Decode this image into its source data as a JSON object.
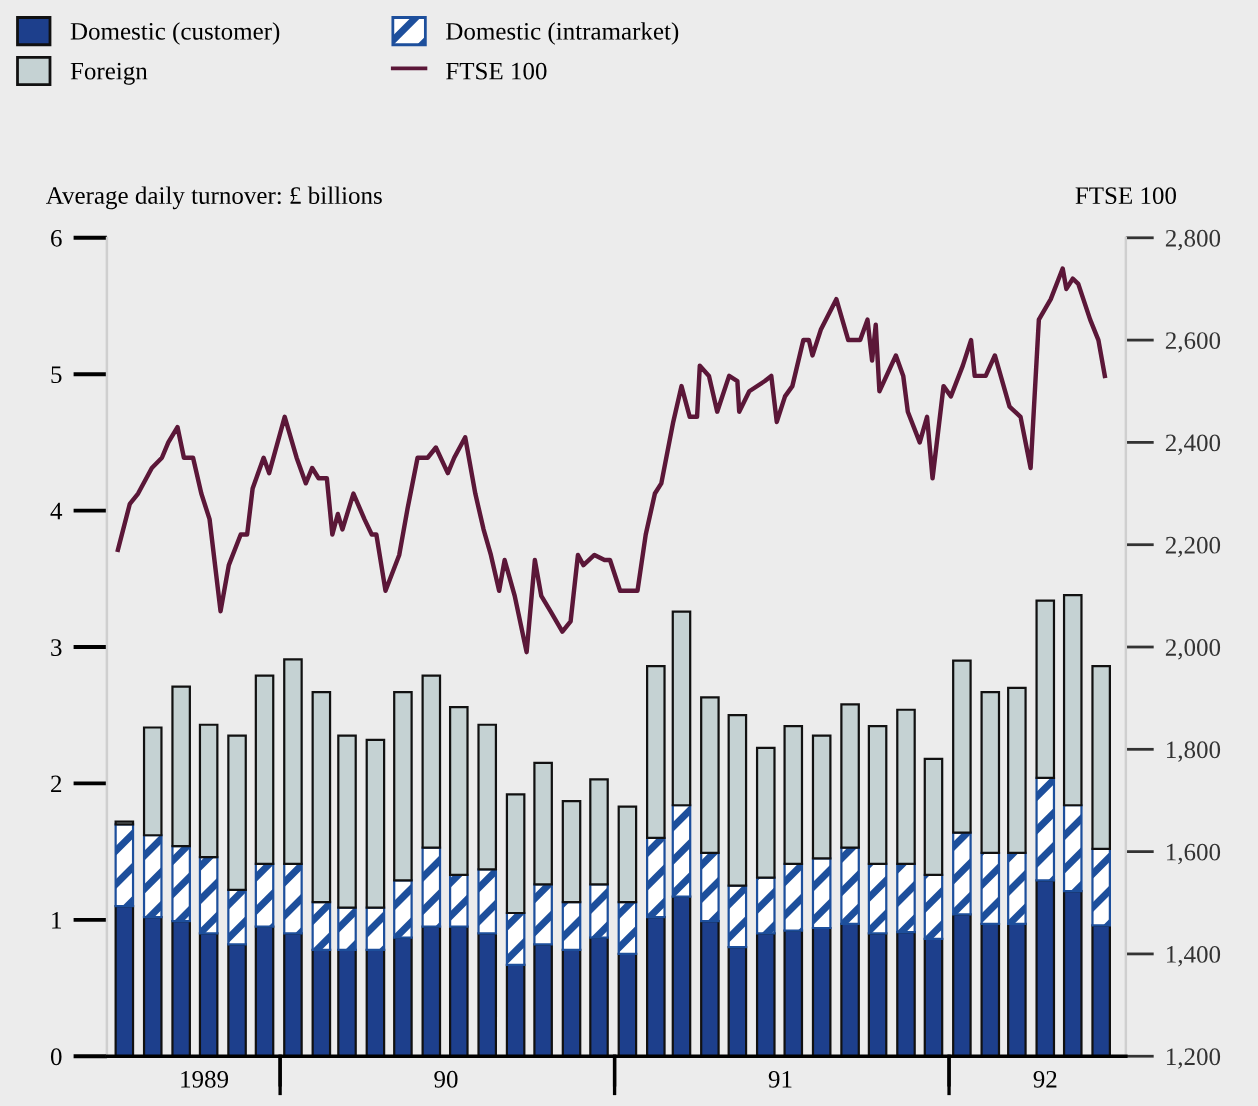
{
  "chart_data": {
    "type": "bar",
    "stacked": true,
    "ylabel": "Average daily turnover: £ billions",
    "y2label": "FTSE 100",
    "x": [
      "1989-07-15",
      "1989-08-15",
      "1989-09-15",
      "1989-10-15",
      "1989-11-15",
      "1989-12-15",
      "1990-01-15",
      "1990-02-15",
      "1990-03-15",
      "1990-04-15",
      "1990-05-15",
      "1990-06-15",
      "1990-07-15",
      "1990-08-15",
      "1990-09-15",
      "1990-10-15",
      "1990-11-15",
      "1990-12-15",
      "1991-01-15",
      "1991-02-15",
      "1991-03-15",
      "1991-04-15",
      "1991-05-15",
      "1991-06-15",
      "1991-07-15",
      "1991-08-15",
      "1991-09-15",
      "1991-10-15",
      "1991-11-15",
      "1991-12-15",
      "1992-01-15",
      "1992-02-15",
      "1992-03-15",
      "1992-04-15",
      "1992-05-15",
      "1992-06-15"
    ],
    "xlim": [
      "1989-06-26",
      "1992-07-12"
    ],
    "xticks": [
      {
        "value": "1989-10-10",
        "label": "1989"
      },
      {
        "value": "1990-01-01",
        "label": null
      },
      {
        "value": "1990-07-01",
        "label": "90"
      },
      {
        "value": "1991-01-01",
        "label": null
      },
      {
        "value": "1991-07-01",
        "label": "91"
      },
      {
        "value": "1992-01-01",
        "label": null
      },
      {
        "value": "1992-04-15",
        "label": "92"
      }
    ],
    "ylim": [
      0,
      6
    ],
    "yticks": [
      0,
      1,
      2,
      3,
      4,
      5,
      6
    ],
    "y2lim": [
      1200,
      2800
    ],
    "y2ticks": [
      {
        "value": 1200,
        "label": "1,200"
      },
      {
        "value": 1400,
        "label": "1,400"
      },
      {
        "value": 1600,
        "label": "1,600"
      },
      {
        "value": 1800,
        "label": "1,800"
      },
      {
        "value": 2000,
        "label": "2,000"
      },
      {
        "value": 2200,
        "label": "2,200"
      },
      {
        "value": 2400,
        "label": "2,400"
      },
      {
        "value": 2600,
        "label": "2,600"
      },
      {
        "value": 2800,
        "label": "2,800"
      }
    ],
    "legend": "top",
    "grid": false,
    "series": [
      {
        "name": "Domestic (customer)",
        "color": "#1d3f8c",
        "values": [
          1.1,
          1.02,
          0.99,
          0.9,
          0.82,
          0.95,
          0.9,
          0.78,
          0.78,
          0.78,
          0.87,
          0.95,
          0.95,
          0.9,
          0.67,
          0.82,
          0.78,
          0.87,
          0.75,
          1.02,
          1.17,
          0.99,
          0.8,
          0.9,
          0.92,
          0.94,
          0.97,
          0.9,
          0.91,
          0.86,
          1.04,
          0.97,
          0.97,
          1.29,
          1.21,
          0.96
        ]
      },
      {
        "name": "Domestic (intramarket)",
        "color": "#1d4f9c",
        "values": [
          0.6,
          0.6,
          0.55,
          0.56,
          0.4,
          0.46,
          0.51,
          0.35,
          0.31,
          0.31,
          0.42,
          0.58,
          0.38,
          0.47,
          0.38,
          0.44,
          0.35,
          0.39,
          0.38,
          0.58,
          0.67,
          0.5,
          0.45,
          0.41,
          0.49,
          0.51,
          0.56,
          0.51,
          0.5,
          0.47,
          0.6,
          0.52,
          0.52,
          0.75,
          0.63,
          0.56
        ]
      },
      {
        "name": "Foreign",
        "color": "#c5d2d3",
        "values": [
          0.02,
          0.79,
          1.17,
          0.97,
          1.13,
          1.38,
          1.5,
          1.54,
          1.26,
          1.23,
          1.38,
          1.26,
          1.23,
          1.06,
          0.87,
          0.89,
          0.74,
          0.77,
          0.7,
          1.26,
          1.42,
          1.14,
          1.25,
          0.95,
          1.01,
          0.9,
          1.05,
          1.01,
          1.13,
          0.85,
          1.26,
          1.18,
          1.21,
          1.3,
          1.54,
          1.34
        ]
      },
      {
        "name": "FTSE 100",
        "type": "line",
        "axis": "y2",
        "color": "#5b1738",
        "x": [
          "1989-07-08",
          "1989-07-21",
          "1989-07-30",
          "1989-08-14",
          "1989-08-25",
          "1989-09-01",
          "1989-09-11",
          "1989-09-18",
          "1989-09-28",
          "1989-10-07",
          "1989-10-16",
          "1989-10-28",
          "1989-11-06",
          "1989-11-19",
          "1989-11-26",
          "1989-12-02",
          "1989-12-14",
          "1989-12-20",
          "1990-01-06",
          "1990-01-19",
          "1990-01-29",
          "1990-02-05",
          "1990-02-12",
          "1990-02-21",
          "1990-02-27",
          "1990-03-05",
          "1990-03-10",
          "1990-03-22",
          "1990-04-03",
          "1990-04-11",
          "1990-04-16",
          "1990-04-26",
          "1990-05-11",
          "1990-05-20",
          "1990-05-31",
          "1990-06-11",
          "1990-06-20",
          "1990-07-03",
          "1990-07-10",
          "1990-07-22",
          "1990-08-02",
          "1990-08-11",
          "1990-08-19",
          "1990-08-28",
          "1990-09-03",
          "1990-09-14",
          "1990-09-27",
          "1990-10-06",
          "1990-10-13",
          "1990-10-23",
          "1990-11-05",
          "1990-11-14",
          "1990-11-22",
          "1990-11-28",
          "1990-12-10",
          "1990-12-21",
          "1990-12-27",
          "1991-01-07",
          "1991-01-26",
          "1991-02-04",
          "1991-02-14",
          "1991-02-21",
          "1991-03-06",
          "1991-03-15",
          "1991-03-24",
          "1991-04-01",
          "1991-04-04",
          "1991-04-14",
          "1991-04-23",
          "1991-05-06",
          "1991-05-15",
          "1991-05-17",
          "1991-05-28",
          "1991-06-14",
          "1991-06-21",
          "1991-06-27",
          "1991-07-06",
          "1991-07-14",
          "1991-07-26",
          "1991-08-01",
          "1991-08-05",
          "1991-08-14",
          "1991-08-31",
          "1991-09-13",
          "1991-09-26",
          "1991-10-04",
          "1991-10-09",
          "1991-10-13",
          "1991-10-17",
          "1991-11-04",
          "1991-11-12",
          "1991-11-17",
          "1991-11-30",
          "1991-12-08",
          "1991-12-14",
          "1991-12-26",
          "1992-01-03",
          "1992-01-16",
          "1992-01-25",
          "1992-01-29",
          "1992-02-10",
          "1992-02-20",
          "1992-03-07",
          "1992-03-19",
          "1992-03-30",
          "1992-04-08",
          "1992-04-21",
          "1992-05-04",
          "1992-05-08",
          "1992-05-15",
          "1992-05-21",
          "1992-06-03",
          "1992-06-12",
          "1992-06-19"
        ],
        "values": [
          2190,
          2280,
          2300,
          2350,
          2370,
          2400,
          2430,
          2370,
          2370,
          2300,
          2250,
          2070,
          2160,
          2220,
          2220,
          2310,
          2370,
          2340,
          2450,
          2370,
          2320,
          2350,
          2330,
          2330,
          2220,
          2260,
          2230,
          2300,
          2250,
          2220,
          2220,
          2110,
          2180,
          2270,
          2370,
          2370,
          2390,
          2340,
          2370,
          2410,
          2300,
          2230,
          2180,
          2110,
          2170,
          2100,
          1990,
          2170,
          2100,
          2070,
          2030,
          2050,
          2180,
          2160,
          2180,
          2170,
          2170,
          2110,
          2110,
          2220,
          2300,
          2320,
          2440,
          2510,
          2450,
          2450,
          2550,
          2530,
          2460,
          2530,
          2520,
          2460,
          2500,
          2520,
          2530,
          2440,
          2490,
          2510,
          2600,
          2600,
          2570,
          2620,
          2680,
          2600,
          2600,
          2640,
          2560,
          2630,
          2500,
          2570,
          2530,
          2460,
          2400,
          2450,
          2330,
          2510,
          2490,
          2550,
          2600,
          2530,
          2530,
          2570,
          2470,
          2450,
          2350,
          2640,
          2680,
          2740,
          2700,
          2720,
          2710,
          2640,
          2600,
          2530
        ]
      }
    ]
  }
}
